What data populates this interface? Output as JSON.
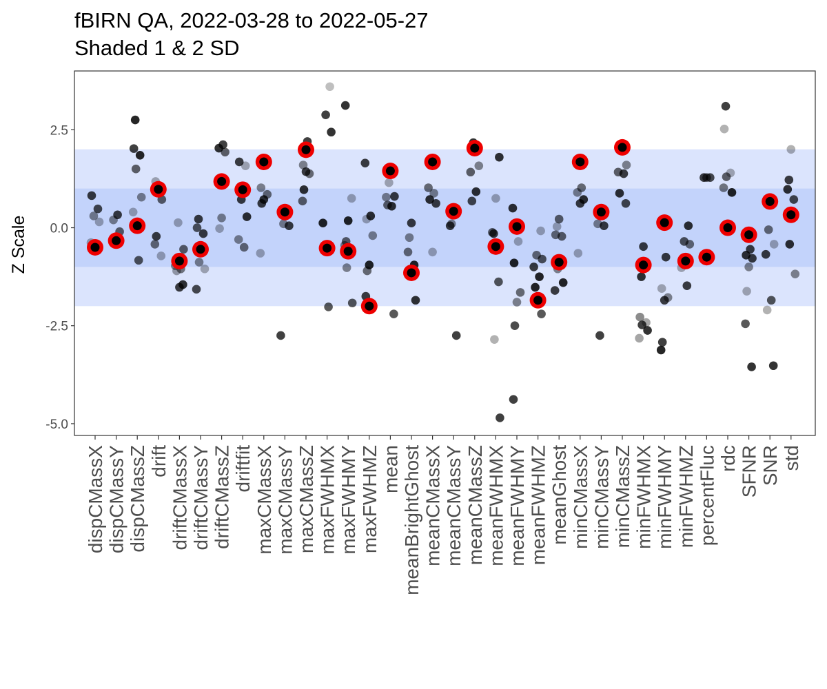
{
  "chart_data": {
    "type": "scatter",
    "title": "fBIRN QA, 2022-03-28 to 2022-05-27",
    "subtitle": "Shaded 1 & 2 SD",
    "xlabel": "",
    "ylabel": "Z Scale",
    "ylim": [
      -5.3,
      4.0
    ],
    "yticks": [
      2.5,
      0.0,
      -2.5,
      -5.0
    ],
    "ytick_labels": [
      "2.5",
      "0.0",
      "-2.5",
      "-5.0"
    ],
    "bands": [
      {
        "from": -2,
        "to": 2,
        "color": "#dbe4fb"
      },
      {
        "from": -1,
        "to": 1,
        "color": "#c4d5fb"
      }
    ],
    "grid": true,
    "legend": "none",
    "colors": {
      "history_point": "#000000",
      "current_point": "#000000",
      "current_ring": "#ee0000",
      "panel_border": "#333333",
      "grid": "#ebebeb"
    },
    "categories": [
      "dispCMassX",
      "dispCMassY",
      "dispCMassZ",
      "drift",
      "driftCMassX",
      "driftCMassY",
      "driftCMassZ",
      "driftfit",
      "maxCMassX",
      "maxCMassY",
      "maxCMassZ",
      "maxFWHMX",
      "maxFWHMY",
      "maxFWHMZ",
      "mean",
      "meanBrightGhost",
      "meanCMassX",
      "meanCMassY",
      "meanCMassZ",
      "meanFWHMX",
      "meanFWHMY",
      "meanFWHMZ",
      "meanGhost",
      "minCMassX",
      "minCMassY",
      "minCMassZ",
      "minFWHMX",
      "minFWHMY",
      "minFWHMZ",
      "percentFluc",
      "rdc",
      "SFNR",
      "SNR",
      "std"
    ],
    "series": [
      {
        "role": "history",
        "points": [
          [
            0,
            0.82,
            0.75
          ],
          [
            0,
            0.48,
            0.7
          ],
          [
            0,
            0.3,
            0.45
          ],
          [
            0,
            0.15,
            0.3
          ],
          [
            0,
            -0.38,
            0.3
          ],
          [
            1,
            0.33,
            0.75
          ],
          [
            1,
            0.2,
            0.45
          ],
          [
            1,
            -0.1,
            0.6
          ],
          [
            1,
            -0.3,
            0.3
          ],
          [
            2,
            2.75,
            0.85
          ],
          [
            2,
            2.02,
            0.75
          ],
          [
            2,
            1.85,
            0.85
          ],
          [
            2,
            1.5,
            0.6
          ],
          [
            2,
            0.78,
            0.45
          ],
          [
            2,
            0.4,
            0.3
          ],
          [
            2,
            -0.83,
            0.65
          ],
          [
            3,
            1.18,
            0.3
          ],
          [
            3,
            0.72,
            0.6
          ],
          [
            3,
            0.95,
            0.45
          ],
          [
            3,
            -0.22,
            0.75
          ],
          [
            3,
            -0.42,
            0.55
          ],
          [
            3,
            -0.72,
            0.3
          ],
          [
            4,
            0.13,
            0.3
          ],
          [
            4,
            -0.55,
            0.6
          ],
          [
            4,
            -0.97,
            0.45
          ],
          [
            4,
            -1.05,
            0.5
          ],
          [
            4,
            -1.1,
            0.35
          ],
          [
            4,
            -1.45,
            0.8
          ],
          [
            4,
            -1.52,
            0.75
          ],
          [
            5,
            0.22,
            0.75
          ],
          [
            5,
            0.0,
            0.65
          ],
          [
            5,
            -0.15,
            0.75
          ],
          [
            5,
            -0.88,
            0.45
          ],
          [
            5,
            -1.05,
            0.3
          ],
          [
            5,
            -1.57,
            0.7
          ],
          [
            6,
            2.12,
            0.75
          ],
          [
            6,
            2.03,
            0.8
          ],
          [
            6,
            1.93,
            0.6
          ],
          [
            6,
            0.25,
            0.45
          ],
          [
            6,
            -0.02,
            0.3
          ],
          [
            7,
            1.68,
            0.75
          ],
          [
            7,
            1.58,
            0.3
          ],
          [
            7,
            0.72,
            0.75
          ],
          [
            7,
            0.28,
            0.8
          ],
          [
            7,
            -0.3,
            0.45
          ],
          [
            7,
            -0.5,
            0.55
          ],
          [
            8,
            1.02,
            0.45
          ],
          [
            8,
            0.85,
            0.55
          ],
          [
            8,
            0.72,
            0.8
          ],
          [
            8,
            0.62,
            0.75
          ],
          [
            8,
            -0.65,
            0.3
          ],
          [
            9,
            0.38,
            0.3
          ],
          [
            9,
            0.1,
            0.45
          ],
          [
            9,
            0.05,
            0.75
          ],
          [
            9,
            -2.75,
            0.75
          ],
          [
            10,
            2.2,
            0.75
          ],
          [
            10,
            1.6,
            0.45
          ],
          [
            10,
            1.38,
            0.55
          ],
          [
            10,
            1.43,
            0.75
          ],
          [
            10,
            0.97,
            0.8
          ],
          [
            10,
            0.68,
            0.6
          ],
          [
            11,
            3.6,
            0.25
          ],
          [
            11,
            2.88,
            0.75
          ],
          [
            11,
            2.44,
            0.8
          ],
          [
            11,
            0.12,
            0.85
          ],
          [
            11,
            -2.02,
            0.65
          ],
          [
            12,
            3.12,
            0.8
          ],
          [
            12,
            0.75,
            0.3
          ],
          [
            12,
            0.18,
            0.85
          ],
          [
            12,
            -0.35,
            0.6
          ],
          [
            12,
            -0.45,
            0.45
          ],
          [
            12,
            -0.62,
            0.5
          ],
          [
            12,
            -1.02,
            0.45
          ],
          [
            12,
            -1.92,
            0.65
          ],
          [
            13,
            1.65,
            0.75
          ],
          [
            13,
            0.3,
            0.8
          ],
          [
            13,
            0.22,
            0.3
          ],
          [
            13,
            -0.2,
            0.45
          ],
          [
            13,
            -0.95,
            0.85
          ],
          [
            13,
            -1.1,
            0.55
          ],
          [
            13,
            -1.75,
            0.75
          ],
          [
            14,
            1.38,
            0.45
          ],
          [
            14,
            1.15,
            0.3
          ],
          [
            14,
            0.8,
            0.75
          ],
          [
            14,
            0.78,
            0.45
          ],
          [
            14,
            0.55,
            0.8
          ],
          [
            14,
            0.58,
            0.6
          ],
          [
            14,
            -2.2,
            0.65
          ],
          [
            15,
            0.12,
            0.75
          ],
          [
            15,
            -0.25,
            0.45
          ],
          [
            15,
            -0.62,
            0.55
          ],
          [
            15,
            -0.95,
            0.85
          ],
          [
            15,
            -1.22,
            0.45
          ],
          [
            15,
            -1.85,
            0.8
          ],
          [
            16,
            1.02,
            0.55
          ],
          [
            16,
            0.88,
            0.45
          ],
          [
            16,
            0.72,
            0.8
          ],
          [
            16,
            0.62,
            0.75
          ],
          [
            16,
            -0.62,
            0.3
          ],
          [
            17,
            0.1,
            0.45
          ],
          [
            17,
            0.05,
            0.75
          ],
          [
            17,
            -2.75,
            0.75
          ],
          [
            18,
            2.17,
            0.8
          ],
          [
            18,
            1.58,
            0.45
          ],
          [
            18,
            1.42,
            0.6
          ],
          [
            18,
            0.92,
            0.8
          ],
          [
            18,
            0.68,
            0.7
          ],
          [
            19,
            1.8,
            0.8
          ],
          [
            19,
            0.75,
            0.3
          ],
          [
            19,
            -0.15,
            0.75
          ],
          [
            19,
            -0.12,
            0.6
          ],
          [
            19,
            -1.38,
            0.65
          ],
          [
            19,
            -2.85,
            0.3
          ],
          [
            19,
            -4.85,
            0.75
          ],
          [
            20,
            0.5,
            0.8
          ],
          [
            20,
            -0.35,
            0.3
          ],
          [
            20,
            -0.9,
            0.85
          ],
          [
            20,
            -1.65,
            0.55
          ],
          [
            20,
            -1.9,
            0.45
          ],
          [
            20,
            -2.5,
            0.7
          ],
          [
            20,
            -4.38,
            0.75
          ],
          [
            21,
            -0.08,
            0.3
          ],
          [
            21,
            -0.7,
            0.55
          ],
          [
            21,
            -0.8,
            0.65
          ],
          [
            21,
            -1.0,
            0.75
          ],
          [
            21,
            -1.25,
            0.85
          ],
          [
            21,
            -1.52,
            0.85
          ],
          [
            21,
            -2.2,
            0.65
          ],
          [
            22,
            0.22,
            0.6
          ],
          [
            22,
            0.03,
            0.3
          ],
          [
            22,
            -0.18,
            0.55
          ],
          [
            22,
            -0.22,
            0.6
          ],
          [
            22,
            -1.05,
            0.45
          ],
          [
            22,
            -1.4,
            0.85
          ],
          [
            22,
            -1.6,
            0.75
          ],
          [
            23,
            1.02,
            0.55
          ],
          [
            23,
            0.9,
            0.45
          ],
          [
            23,
            0.72,
            0.8
          ],
          [
            23,
            0.62,
            0.75
          ],
          [
            23,
            -0.65,
            0.3
          ],
          [
            24,
            0.1,
            0.45
          ],
          [
            24,
            0.05,
            0.75
          ],
          [
            24,
            -2.75,
            0.75
          ],
          [
            25,
            1.6,
            0.45
          ],
          [
            25,
            1.42,
            0.6
          ],
          [
            25,
            1.38,
            0.75
          ],
          [
            25,
            0.88,
            0.8
          ],
          [
            25,
            0.62,
            0.7
          ],
          [
            26,
            -0.48,
            0.75
          ],
          [
            26,
            -1.25,
            0.8
          ],
          [
            26,
            -2.28,
            0.45
          ],
          [
            26,
            -2.42,
            0.35
          ],
          [
            26,
            -2.48,
            0.75
          ],
          [
            26,
            -2.62,
            0.8
          ],
          [
            26,
            -2.82,
            0.35
          ],
          [
            27,
            -0.75,
            0.75
          ],
          [
            27,
            -1.55,
            0.3
          ],
          [
            27,
            -1.78,
            0.45
          ],
          [
            27,
            -1.85,
            0.75
          ],
          [
            27,
            -2.92,
            0.75
          ],
          [
            27,
            -3.12,
            0.85
          ],
          [
            28,
            0.05,
            0.8
          ],
          [
            28,
            -0.35,
            0.65
          ],
          [
            28,
            -0.42,
            0.55
          ],
          [
            28,
            -1.02,
            0.3
          ],
          [
            28,
            -1.48,
            0.75
          ],
          [
            29,
            1.28,
            0.75
          ],
          [
            29,
            1.28,
            0.7
          ],
          [
            29,
            1.28,
            0.6
          ],
          [
            30,
            3.1,
            0.75
          ],
          [
            30,
            2.52,
            0.3
          ],
          [
            30,
            1.4,
            0.3
          ],
          [
            30,
            1.3,
            0.6
          ],
          [
            30,
            0.9,
            0.85
          ],
          [
            30,
            1.02,
            0.5
          ],
          [
            31,
            -0.55,
            0.75
          ],
          [
            31,
            -0.7,
            0.8
          ],
          [
            31,
            -0.78,
            0.75
          ],
          [
            31,
            -1.0,
            0.45
          ],
          [
            31,
            -1.62,
            0.3
          ],
          [
            31,
            -2.45,
            0.65
          ],
          [
            31,
            -3.55,
            0.8
          ],
          [
            32,
            -0.05,
            0.55
          ],
          [
            32,
            -0.42,
            0.3
          ],
          [
            32,
            -0.68,
            0.75
          ],
          [
            32,
            -1.85,
            0.65
          ],
          [
            32,
            -2.1,
            0.3
          ],
          [
            32,
            -3.52,
            0.8
          ],
          [
            33,
            2.0,
            0.3
          ],
          [
            33,
            1.22,
            0.75
          ],
          [
            33,
            0.98,
            0.8
          ],
          [
            33,
            0.72,
            0.7
          ],
          [
            33,
            -0.42,
            0.8
          ],
          [
            33,
            -1.18,
            0.45
          ]
        ]
      },
      {
        "role": "current",
        "points": [
          [
            0,
            -0.5
          ],
          [
            1,
            -0.33
          ],
          [
            2,
            0.05
          ],
          [
            3,
            0.98
          ],
          [
            4,
            -0.85
          ],
          [
            5,
            -0.55
          ],
          [
            6,
            1.18
          ],
          [
            7,
            0.97
          ],
          [
            8,
            1.68
          ],
          [
            9,
            0.4
          ],
          [
            10,
            1.99
          ],
          [
            11,
            -0.52
          ],
          [
            12,
            -0.6
          ],
          [
            13,
            -2.0
          ],
          [
            14,
            1.45
          ],
          [
            15,
            -1.15
          ],
          [
            16,
            1.68
          ],
          [
            17,
            0.42
          ],
          [
            18,
            2.03
          ],
          [
            19,
            -0.48
          ],
          [
            20,
            0.03
          ],
          [
            21,
            -1.85
          ],
          [
            22,
            -0.88
          ],
          [
            23,
            1.68
          ],
          [
            24,
            0.4
          ],
          [
            25,
            2.05
          ],
          [
            26,
            -0.95
          ],
          [
            27,
            0.13
          ],
          [
            28,
            -0.85
          ],
          [
            29,
            -0.75
          ],
          [
            30,
            0.0
          ],
          [
            31,
            -0.18
          ],
          [
            32,
            0.67
          ],
          [
            33,
            0.33
          ]
        ]
      }
    ]
  }
}
